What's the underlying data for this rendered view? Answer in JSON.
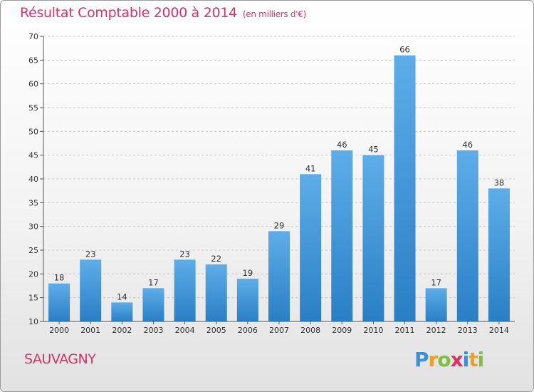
{
  "title": "Résultat Comptable 2000 à 2014",
  "subtitle": "(en milliers d'€)",
  "commune": "SAUVAGNY",
  "logo": {
    "letters": [
      "P",
      "r",
      "o",
      "x",
      "i",
      "t",
      "i"
    ],
    "colors": [
      "#3a8fd8",
      "#f0a020",
      "#7cc040",
      "#e03060",
      "#3a8fd8",
      "#f0a020",
      "#7cc040"
    ]
  },
  "colors": {
    "title": "#d6336c",
    "bar_light": "#5dade8",
    "bar_dark": "#2a7fc4",
    "grid": "#c8c8c8"
  },
  "chart_data": {
    "type": "bar",
    "title": "Résultat Comptable 2000 à 2014",
    "ylabel": "(en milliers d'€)",
    "xlabel": "",
    "categories": [
      "2000",
      "2001",
      "2002",
      "2003",
      "2004",
      "2005",
      "2006",
      "2007",
      "2008",
      "2009",
      "2010",
      "2011",
      "2012",
      "2013",
      "2014"
    ],
    "values": [
      18,
      23,
      14,
      17,
      23,
      22,
      19,
      29,
      41,
      46,
      45,
      66,
      17,
      46,
      38
    ],
    "ylim": [
      10,
      70
    ],
    "yticks": [
      10,
      15,
      20,
      25,
      30,
      35,
      40,
      45,
      50,
      55,
      60,
      65,
      70
    ],
    "grid": true
  }
}
